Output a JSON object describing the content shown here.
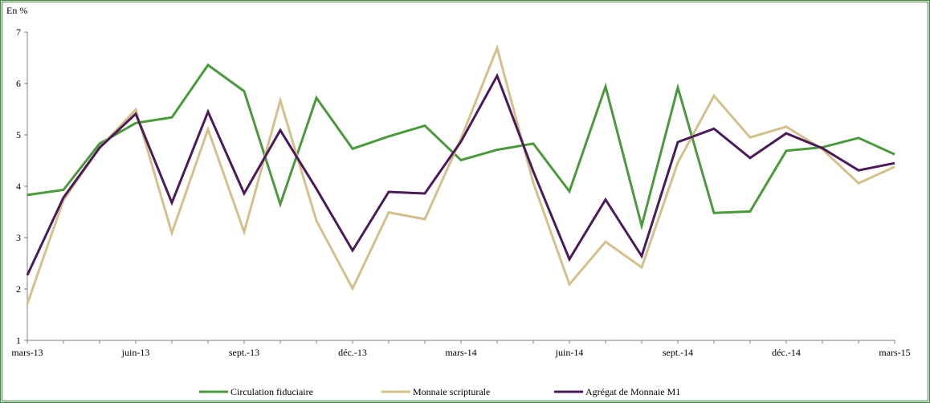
{
  "chart_data": {
    "type": "line",
    "ylabel": "En %",
    "ylim": [
      1,
      7
    ],
    "yticks": [
      1,
      2,
      3,
      4,
      5,
      6,
      7
    ],
    "grid": false,
    "legend_position": "bottom",
    "x_tick_labels": [
      "mars-13",
      "juin-13",
      "sept.-13",
      "déc.-13",
      "mars-14",
      "juin-14",
      "sept.-14",
      "déc.-14",
      "mars-15"
    ],
    "x": [
      "mars-13",
      "avr.-13",
      "mai-13",
      "juin-13",
      "juil.-13",
      "août-13",
      "sept.-13",
      "oct.-13",
      "nov.-13",
      "déc.-13",
      "janv.-14",
      "févr.-14",
      "mars-14",
      "avr.-14",
      "mai-14",
      "juin-14",
      "juil.-14",
      "août-14",
      "sept.-14",
      "oct.-14",
      "nov.-14",
      "déc.-14",
      "janv.-15",
      "févr.-15",
      "mars-15"
    ],
    "series": [
      {
        "name": "Circulation fiduciaire",
        "color": "#4a9a3c",
        "values": [
          3.83,
          3.93,
          4.83,
          5.23,
          5.34,
          6.36,
          5.85,
          3.65,
          5.72,
          4.73,
          4.97,
          5.18,
          4.51,
          4.71,
          4.83,
          3.9,
          5.94,
          3.23,
          5.92,
          3.48,
          3.51,
          4.69,
          4.76,
          4.94,
          4.62
        ]
      },
      {
        "name": "Monnaie scripturale",
        "color": "#d4c08a",
        "values": [
          1.71,
          3.73,
          4.75,
          5.49,
          3.09,
          5.11,
          3.11,
          5.67,
          3.33,
          2.01,
          3.49,
          3.36,
          4.93,
          6.69,
          4.07,
          2.09,
          2.92,
          2.42,
          4.46,
          5.76,
          4.95,
          5.16,
          4.72,
          4.06,
          4.38
        ]
      },
      {
        "name": "Agrégat de Monnaie M1",
        "color": "#4b1a5a",
        "values": [
          2.27,
          3.78,
          4.75,
          5.41,
          3.68,
          5.45,
          3.86,
          5.09,
          3.95,
          2.75,
          3.89,
          3.86,
          4.87,
          6.15,
          4.29,
          2.58,
          3.74,
          2.64,
          4.86,
          5.12,
          4.55,
          5.03,
          4.74,
          4.31,
          4.45
        ]
      }
    ]
  }
}
